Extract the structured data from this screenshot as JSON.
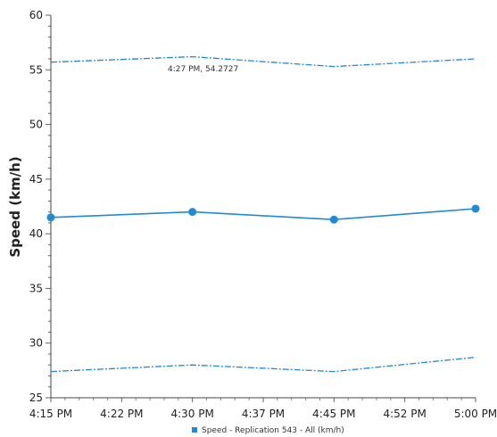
{
  "chart_data": {
    "type": "line",
    "ylabel": "Speed (km/h)",
    "ylim": [
      25,
      60
    ],
    "y_ticks": [
      25,
      30,
      35,
      40,
      45,
      50,
      55,
      60
    ],
    "x_ticks": [
      "4:15 PM",
      "4:22 PM",
      "4:30 PM",
      "4:37 PM",
      "4:45 PM",
      "4:52 PM",
      "5:00 PM"
    ],
    "x_range_minutes": [
      0,
      45
    ],
    "series": [
      {
        "name": "Speed - Replication 543 - All (km/h)",
        "role": "main",
        "x_minutes": [
          0,
          15,
          30,
          45
        ],
        "values": [
          41.5,
          42.0,
          41.3,
          42.3
        ],
        "color": "#1f8ad6"
      },
      {
        "role": "upper",
        "x_minutes": [
          0,
          15,
          30,
          45
        ],
        "values": [
          55.7,
          56.2,
          55.3,
          56.0
        ],
        "color": "#1f8ad6"
      },
      {
        "role": "lower",
        "x_minutes": [
          0,
          15,
          30,
          45
        ],
        "values": [
          27.4,
          28.0,
          27.4,
          28.7
        ],
        "color": "#1f8ad6"
      }
    ],
    "annotation": "4:27 PM, 54.2727",
    "legend": {
      "label": "Speed - Replication 543 - All (km/h)",
      "position": "bottom-center"
    },
    "grid": false
  }
}
